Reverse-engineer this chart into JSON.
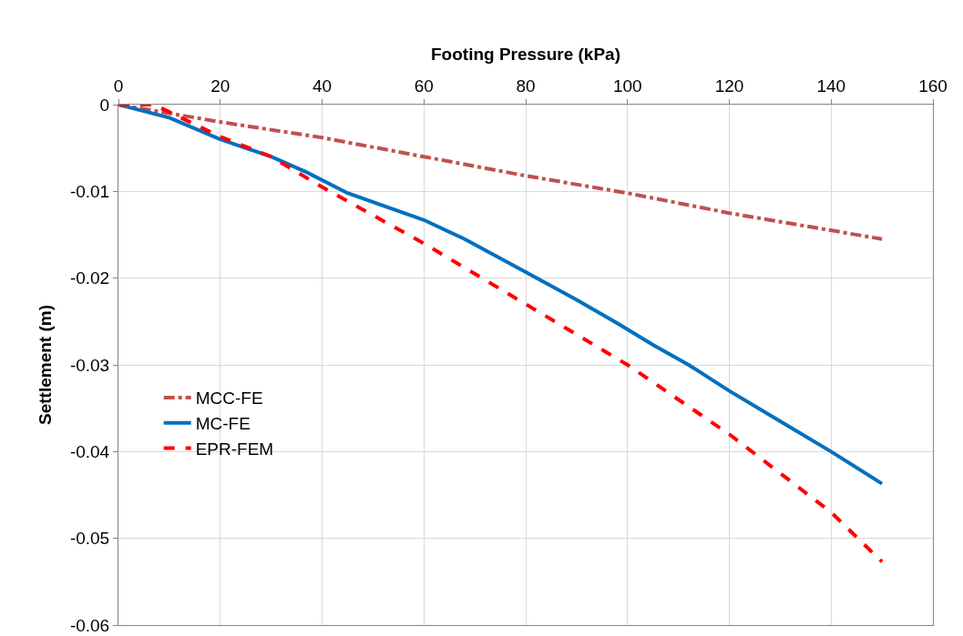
{
  "chart_data": {
    "type": "line",
    "xlabel": "Footing Pressure (kPa)",
    "ylabel": "Settlement (m)",
    "xlim": [
      0,
      160
    ],
    "xticks": [
      0,
      20,
      40,
      60,
      80,
      100,
      120,
      140,
      160
    ],
    "ylim": [
      -0.06,
      0
    ],
    "yticks": [
      -0.06,
      -0.05,
      -0.04,
      -0.03,
      -0.02,
      -0.01,
      0
    ],
    "grid": true,
    "legend": "left",
    "marker": "none",
    "series": [
      {
        "name": "MCC-FE",
        "color": "#c0504d",
        "line_style": "dashdot",
        "x": [
          0,
          10,
          20,
          40,
          60,
          80,
          100,
          120,
          150
        ],
        "values": [
          0,
          -0.001,
          -0.002,
          -0.0038,
          -0.006,
          -0.0082,
          -0.0102,
          -0.0125,
          -0.0155
        ]
      },
      {
        "name": "MC-FE",
        "color": "#0070c0",
        "line_style": "solid",
        "x": [
          0,
          10,
          20,
          30,
          37,
          45,
          60,
          68,
          80,
          90,
          98,
          105,
          112,
          120,
          130,
          140,
          150
        ],
        "values": [
          0,
          -0.0015,
          -0.004,
          -0.006,
          -0.0078,
          -0.0102,
          -0.0133,
          -0.0155,
          -0.0193,
          -0.0225,
          -0.0252,
          -0.0277,
          -0.03,
          -0.033,
          -0.0365,
          -0.04,
          -0.0437
        ]
      },
      {
        "name": "EPR-FEM",
        "color": "#ff0000",
        "line_style": "dashed",
        "x": [
          0,
          7,
          20,
          30,
          40,
          60,
          80,
          100,
          120,
          140,
          150
        ],
        "values": [
          0,
          0,
          -0.0037,
          -0.006,
          -0.0095,
          -0.016,
          -0.023,
          -0.03,
          -0.038,
          -0.047,
          -0.0527
        ]
      }
    ]
  }
}
